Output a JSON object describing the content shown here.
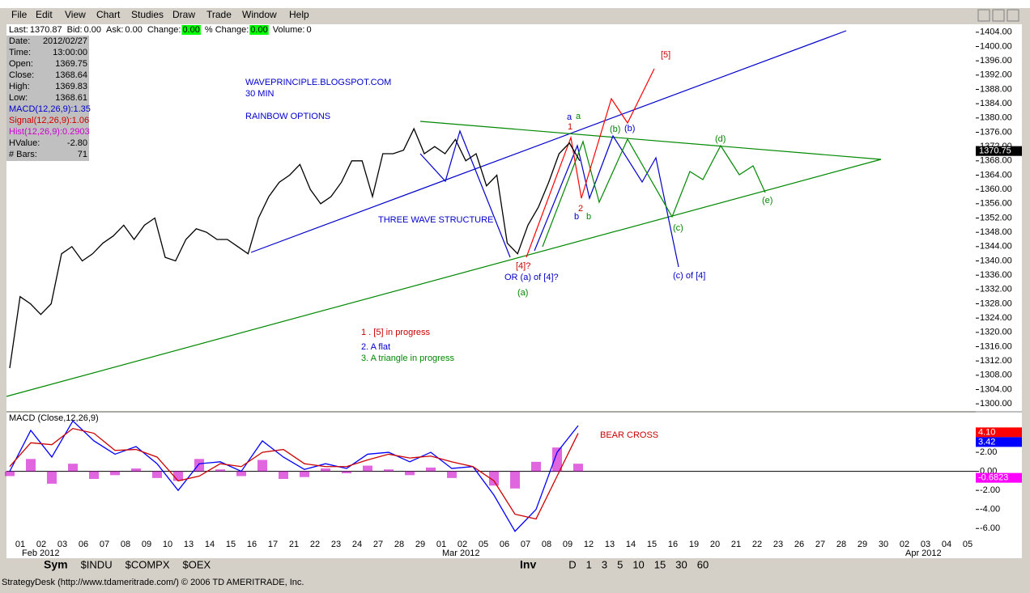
{
  "menu": [
    "File",
    "Edit",
    "View",
    "Chart",
    "Studies",
    "Draw",
    "Trade",
    "Window",
    "Help"
  ],
  "info_bar": [
    {
      "label": "Last:",
      "value": "1370.87"
    },
    {
      "label": "Bid:",
      "value": "0.00"
    },
    {
      "label": "Ask:",
      "value": "0.00"
    },
    {
      "label": "Change:",
      "value": "0.00"
    },
    {
      "label": "% Change:",
      "value": "0.00"
    },
    {
      "label": "Volume:",
      "value": "0"
    }
  ],
  "info_panel": [
    {
      "label": "Date:",
      "value": "2012/02/27",
      "color": "#000000"
    },
    {
      "label": "Time:",
      "value": "13:00:00",
      "color": "#000000"
    },
    {
      "label": "Open:",
      "value": "1369.75",
      "color": "#000000"
    },
    {
      "label": "Close:",
      "value": "1368.64",
      "color": "#000000"
    },
    {
      "label": "High:",
      "value": "1369.83",
      "color": "#000000"
    },
    {
      "label": "Low:",
      "value": "1368.61",
      "color": "#000000"
    },
    {
      "label": "MACD(12,26,9):1.35",
      "color": "#0000cc"
    },
    {
      "label": "Signal(12,26,9):1.06",
      "color": "#cc0000"
    },
    {
      "label": "Hist(12,26,9):0.2903",
      "color": "#cc00cc"
    },
    {
      "label": "HValue:",
      "value": "-2.80",
      "color": "#000000"
    },
    {
      "label": "# Bars:",
      "value": "71",
      "color": "#000000"
    }
  ],
  "price_chart": {
    "type": "line",
    "color": "#000000",
    "values": [
      1310,
      1330,
      1328,
      1325,
      1328,
      1342,
      1344,
      1340,
      1342,
      1345,
      1347,
      1350,
      1346,
      1350,
      1352,
      1341,
      1340,
      1346,
      1349,
      1348,
      1346,
      1346,
      1344,
      1342,
      1352,
      1358,
      1362,
      1364,
      1367,
      1360,
      1356,
      1358,
      1362,
      1368,
      1368,
      1358,
      1370,
      1370,
      1371,
      1377,
      1370,
      1372,
      1370,
      1374,
      1368,
      1370,
      1361,
      1364,
      1345,
      1342,
      1350,
      1355,
      1362,
      1370,
      1373,
      1368
    ],
    "ylim": [
      1298,
      1406
    ],
    "yticks": [
      {
        "value": 1300,
        "label": "1300.00"
      },
      {
        "value": 1304,
        "label": "1304.00"
      },
      {
        "value": 1308,
        "label": "1308.00"
      },
      {
        "value": 1312,
        "label": "1312.00"
      },
      {
        "value": 1316,
        "label": "1316.00"
      },
      {
        "value": 1320,
        "label": "1320.00"
      },
      {
        "value": 1324,
        "label": "1324.00"
      },
      {
        "value": 1328,
        "label": "1328.00"
      },
      {
        "value": 1332,
        "label": "1332.00"
      },
      {
        "value": 1336,
        "label": "1336.00"
      },
      {
        "value": 1340,
        "label": "1340.00"
      },
      {
        "value": 1344,
        "label": "1344.00"
      },
      {
        "value": 1348,
        "label": "1348.00"
      },
      {
        "value": 1352,
        "label": "1352.00"
      },
      {
        "value": 1356,
        "label": "1356.00"
      },
      {
        "value": 1360,
        "label": "1360.00"
      },
      {
        "value": 1364,
        "label": "1364.00"
      },
      {
        "value": 1368,
        "label": "1368.00"
      },
      {
        "value": 1372,
        "label": "1372.00"
      },
      {
        "value": 1376,
        "label": "1376.00"
      },
      {
        "value": 1380,
        "label": "1380.00"
      },
      {
        "value": 1384,
        "label": "1384.00"
      },
      {
        "value": 1388,
        "label": "1388.00"
      },
      {
        "value": 1392,
        "label": "1392.00"
      },
      {
        "value": 1396,
        "label": "1396.00"
      },
      {
        "value": 1400,
        "label": "1400.00"
      },
      {
        "value": 1404,
        "label": "1404.00"
      }
    ],
    "last_label": {
      "value": 1370.75,
      "label": "1370.75"
    }
  },
  "macd_chart": {
    "title": "MACD (Close,12,26,9)",
    "ylim": [
      -7,
      6
    ],
    "yticks": [
      {
        "value": 2,
        "label": "2.00"
      },
      {
        "value": 0,
        "label": "0.00"
      },
      {
        "value": -2,
        "label": "-2.00"
      },
      {
        "value": -4,
        "label": "-4.00"
      },
      {
        "value": -6,
        "label": "-6.00"
      }
    ],
    "series": [
      {
        "name": "MACD",
        "color": "#0000ff",
        "values": [
          0,
          4.3,
          1.5,
          5.3,
          3.2,
          1.8,
          2.6,
          0.8,
          -2,
          0.8,
          1,
          0,
          3.2,
          1.5,
          0.2,
          0.8,
          0.3,
          1.8,
          2,
          1,
          2,
          0.3,
          0.5,
          -2.5,
          -6.3,
          -4,
          2,
          4.8
        ]
      },
      {
        "name": "Signal",
        "color": "#cc0000",
        "values": [
          0.5,
          3,
          2.8,
          4.5,
          4,
          2.2,
          2.3,
          1.5,
          -1,
          -0.5,
          0.8,
          0.5,
          2,
          2.3,
          0.8,
          0.5,
          0.5,
          1.2,
          1.8,
          1.4,
          1.6,
          1,
          0.5,
          -1,
          -4.5,
          -5,
          -0.5,
          4
        ]
      },
      {
        "name": "Hist",
        "color": "#cc00cc",
        "values": [
          -0.5,
          1.3,
          -1.3,
          0.8,
          -0.8,
          -0.4,
          0.3,
          -0.7,
          -1,
          1.3,
          0.2,
          -0.5,
          1.2,
          -0.8,
          -0.6,
          0.3,
          -0.2,
          0.6,
          0.2,
          -0.4,
          0.4,
          -0.7,
          0,
          -1.5,
          -1.8,
          1,
          2.5,
          0.8
        ]
      }
    ],
    "side_labels": [
      {
        "value": 4.1,
        "label": "4.10",
        "color": "#ff0000"
      },
      {
        "value": 3.42,
        "label": "3.42",
        "color": "#0000ff"
      },
      {
        "value": -0.6823,
        "label": "-0.6823",
        "color": "#ff00ff"
      }
    ]
  },
  "x_axis": {
    "categories": [
      "01",
      "02",
      "03",
      "06",
      "07",
      "08",
      "09",
      "10",
      "13",
      "14",
      "15",
      "16",
      "17",
      "21",
      "22",
      "23",
      "24",
      "27",
      "28",
      "29",
      "01",
      "02",
      "05",
      "06",
      "07",
      "08",
      "09",
      "12",
      "13",
      "14",
      "15",
      "16",
      "19",
      "20",
      "21",
      "22",
      "23",
      "26",
      "27",
      "28",
      "29",
      "30",
      "02",
      "03",
      "04",
      "05"
    ],
    "months": [
      "Feb 2012",
      "Mar 2012",
      "Apr 2012"
    ]
  },
  "annotations": [
    {
      "text": "WAVEPRINCIPLE.BLOGSPOT.COM",
      "color": "#0000cc"
    },
    {
      "text": "30 MIN",
      "color": "#0000cc"
    },
    {
      "text": "RAINBOW OPTIONS",
      "color": "#0000cc"
    },
    {
      "text": "THREE WAVE STRUCTURE",
      "color": "#0000cc"
    },
    {
      "text": "[5]",
      "color": "#cc0000"
    },
    {
      "text": "a",
      "color": "#0000cc"
    },
    {
      "text": "a",
      "color": "#008800"
    },
    {
      "text": "1",
      "color": "#cc0000"
    },
    {
      "text": "(b)",
      "color": "#008800"
    },
    {
      "text": "(b)",
      "color": "#0000cc"
    },
    {
      "text": "(d)",
      "color": "#008800"
    },
    {
      "text": "(e)",
      "color": "#008800"
    },
    {
      "text": "(c)",
      "color": "#008800"
    },
    {
      "text": "(c) of [4]",
      "color": "#0000cc"
    },
    {
      "text": "b",
      "color": "#0000cc"
    },
    {
      "text": "b",
      "color": "#008800"
    },
    {
      "text": "2",
      "color": "#cc0000"
    },
    {
      "text": "[4]?",
      "color": "#cc0000"
    },
    {
      "text": "OR (a) of [4]?",
      "color": "#0000cc"
    },
    {
      "text": "(a)",
      "color": "#008800"
    },
    {
      "text": "1 . [5] in progress",
      "color": "#cc0000"
    },
    {
      "text": "2. A flat",
      "color": "#0000cc"
    },
    {
      "text": "3. A triangle in progress",
      "color": "#008800"
    },
    {
      "text": "BEAR CROSS",
      "color": "#cc0000"
    }
  ],
  "tabs": [
    "Sym",
    "$INDU",
    "$COMPX",
    "$OEX"
  ],
  "periods": [
    "Inv",
    "D",
    "1",
    "3",
    "5",
    "10",
    "15",
    "30",
    "60"
  ],
  "status": "StrategyDesk (http://www.tdameritrade.com/) © 2006 TD AMERITRADE, Inc."
}
